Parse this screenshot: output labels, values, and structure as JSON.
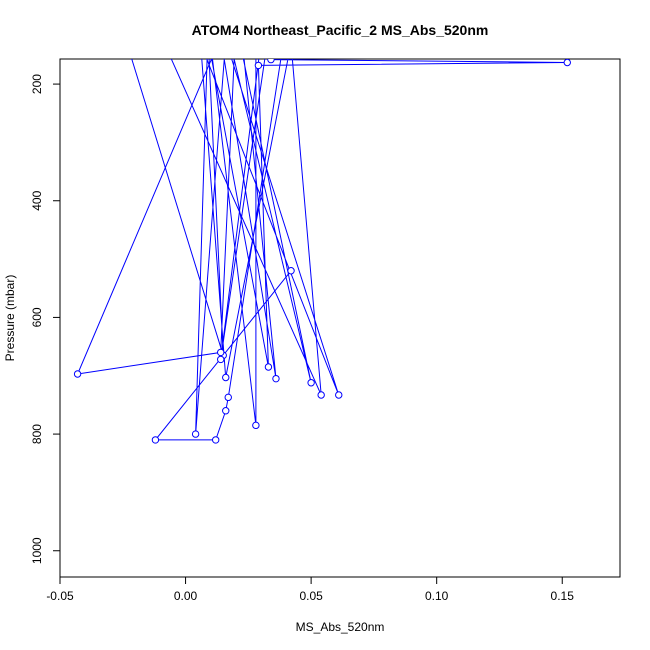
{
  "chart_data": {
    "type": "line",
    "title": "ATOM4 Northeast_Pacific_2 MS_Abs_520nm",
    "xlabel": "MS_Abs_520nm",
    "ylabel": "Pressure (mbar)",
    "xlim": [
      -0.05,
      0.173
    ],
    "ylim": [
      1045,
      157
    ],
    "y_reversed": true,
    "grid": false,
    "x_ticks": [
      -0.05,
      0.0,
      0.05,
      0.1,
      0.15
    ],
    "x_tick_labels": [
      "-0.05",
      "0.00",
      "0.05",
      "0.10",
      "0.15"
    ],
    "y_ticks": [
      200,
      400,
      600,
      800,
      1000
    ],
    "y_tick_labels": [
      "200",
      "400",
      "600",
      "800",
      "1000"
    ],
    "series_color": "#0000ff",
    "series": [
      {
        "x": [
          -0.023,
          0.015,
          0.009,
          0.033,
          0.029,
          0.152,
          0.034,
          0.033,
          0.014,
          0.031,
          -0.01,
          0.054,
          0.042,
          0.016,
          0.006,
          0.061,
          0.016,
          0.004,
          0.009,
          0.028,
          0.028,
          0.022,
          0.036,
          0.014,
          -0.043,
          0.014,
          0.02,
          0.05,
          0.017,
          0.04,
          0.017,
          0.016,
          0.012,
          -0.012,
          0.042
        ],
        "y": [
          135,
          665,
          125,
          685,
          168,
          163,
          158,
          115,
          672,
          95,
          115,
          733,
          130,
          703,
          130,
          733,
          125,
          800,
          95,
          785,
          110,
          100,
          705,
          120,
          697,
          660,
          95,
          712,
          115,
          100,
          737,
          760,
          810,
          810,
          520
        ]
      }
    ]
  }
}
